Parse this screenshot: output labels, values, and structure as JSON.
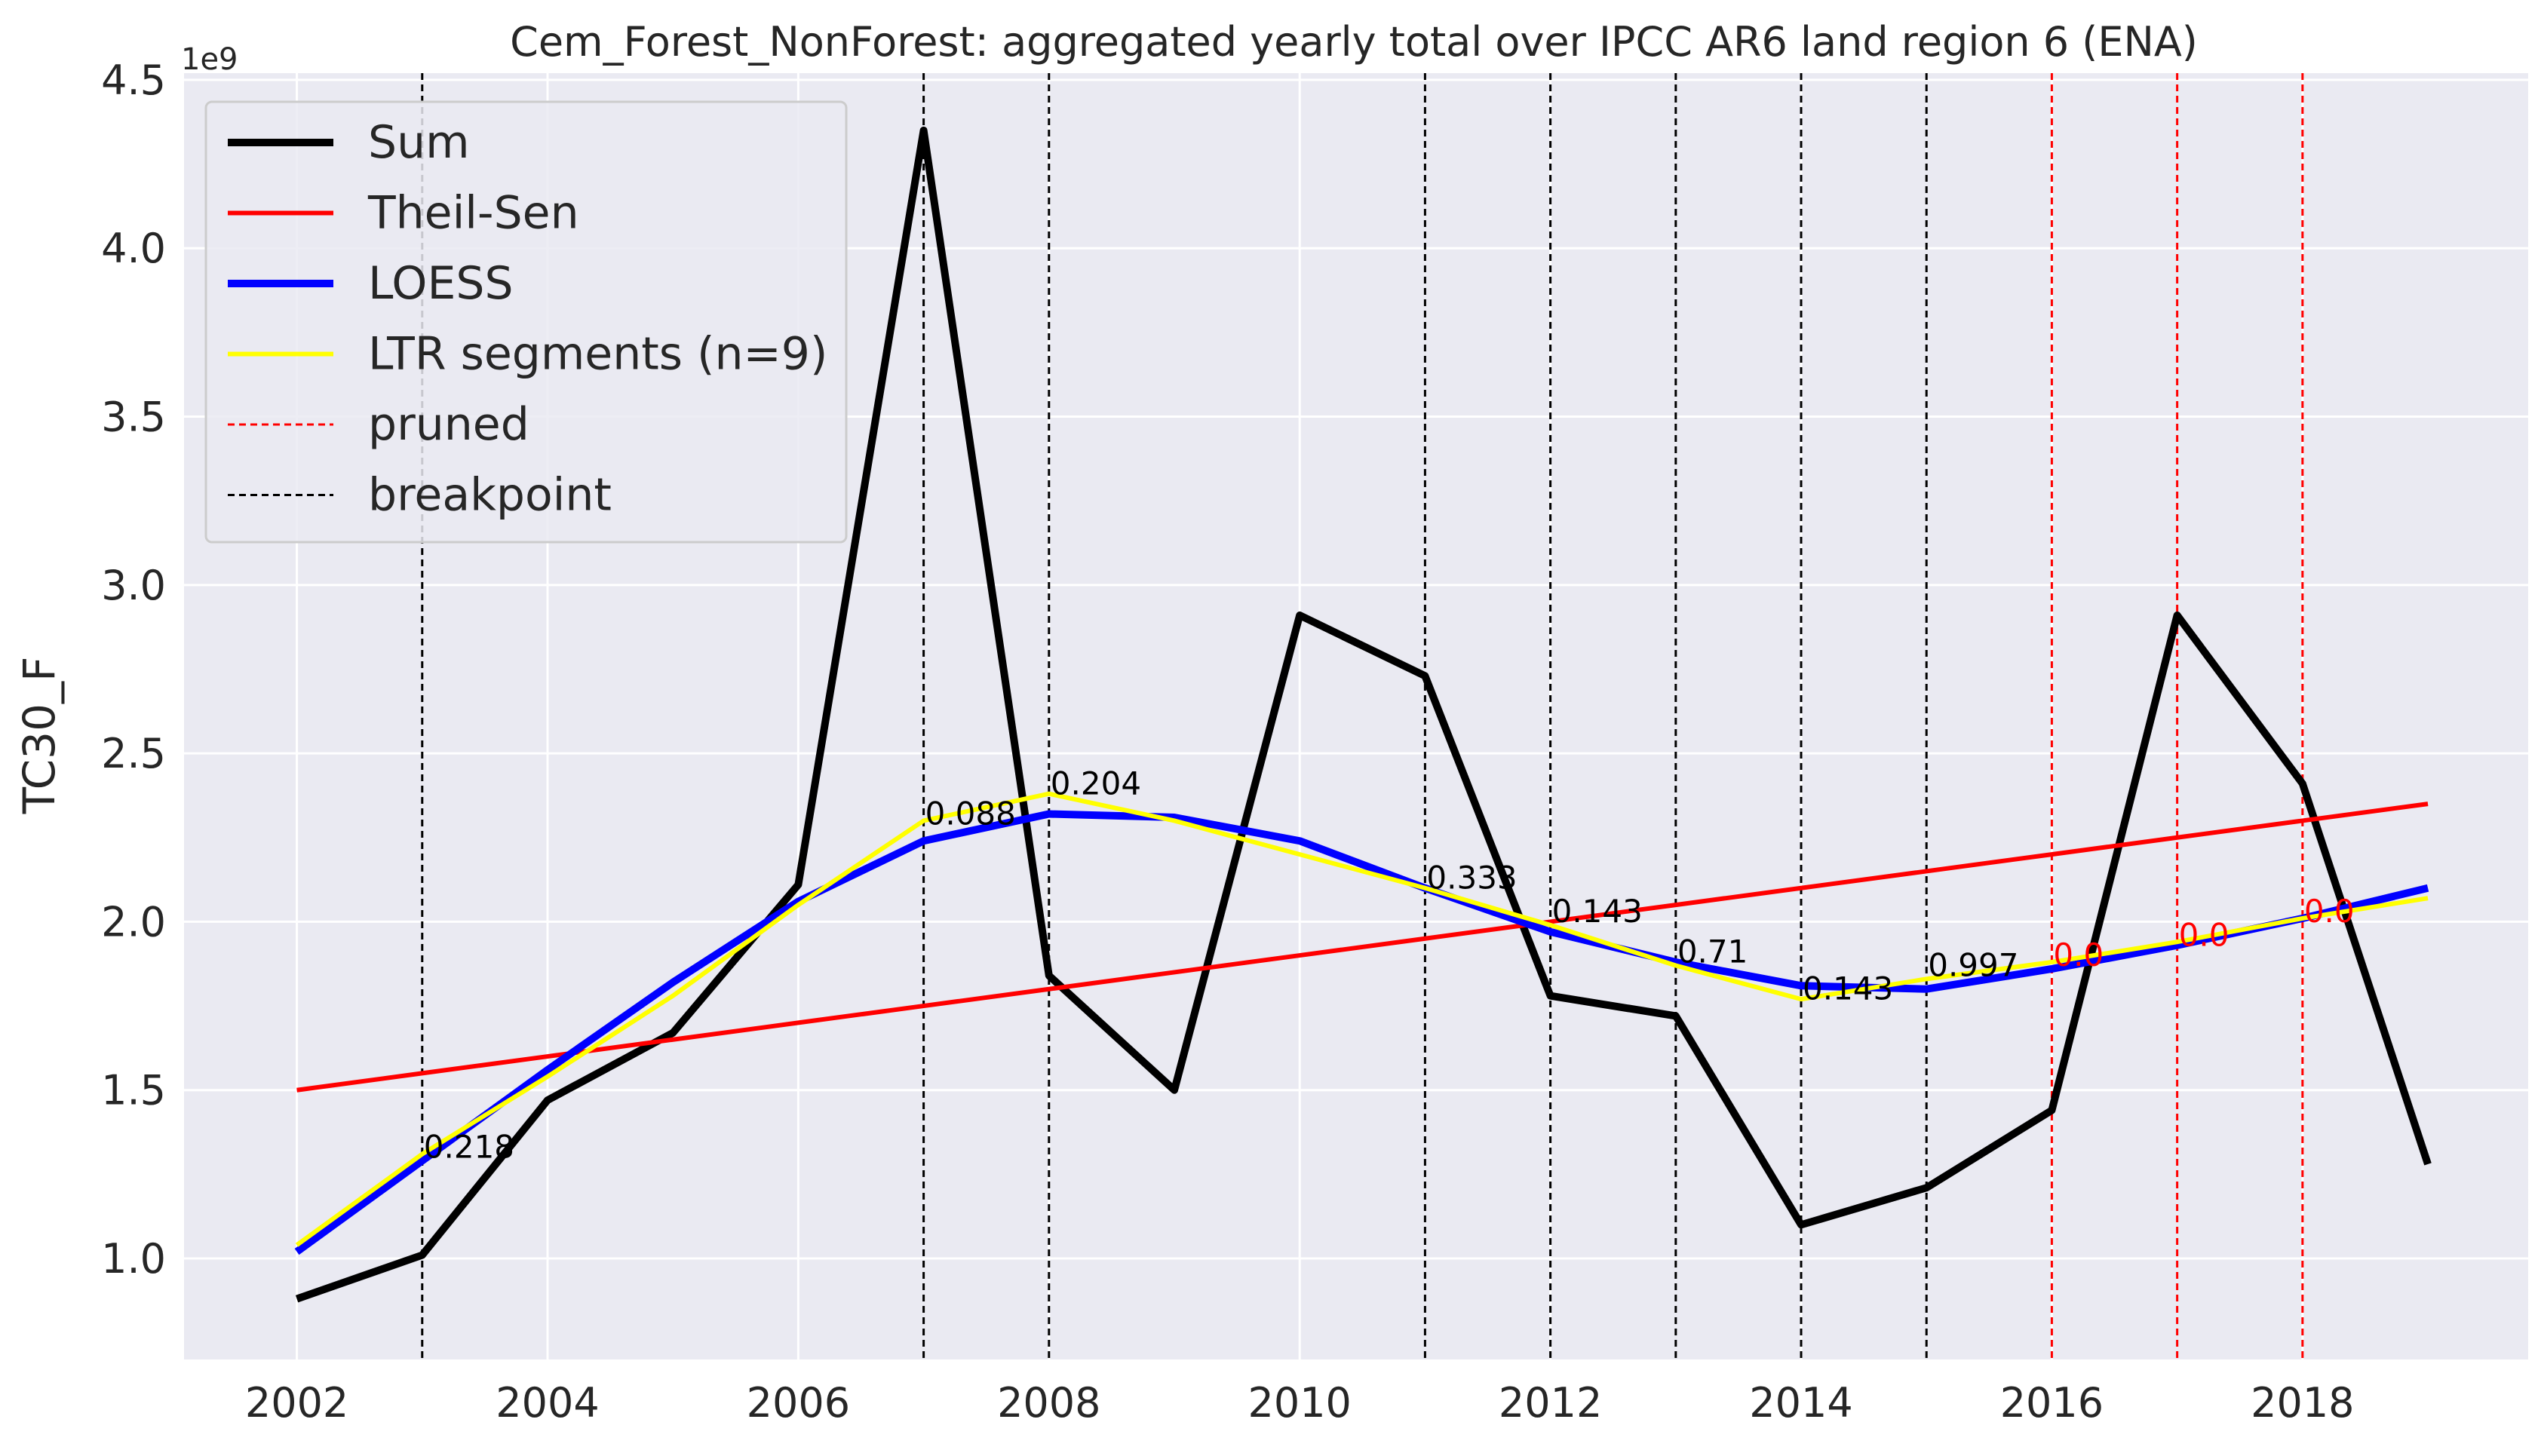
{
  "chart_data": {
    "type": "line",
    "title": "Cem_Forest_NonForest: aggregated yearly total over IPCC AR6 land region 6 (ENA)",
    "xlabel": "",
    "ylabel": "TC30_F",
    "y_offset_text": "1e9",
    "xlim": [
      2001.1,
      2019.8
    ],
    "ylim": [
      700000000.0,
      4520000000.0
    ],
    "x_ticks": [
      2002,
      2004,
      2006,
      2008,
      2010,
      2012,
      2014,
      2016,
      2018
    ],
    "x_tick_labels": [
      "2002",
      "2004",
      "2006",
      "2008",
      "2010",
      "2012",
      "2014",
      "2016",
      "2018"
    ],
    "y_ticks": [
      1000000000.0,
      1500000000.0,
      2000000000.0,
      2500000000.0,
      3000000000.0,
      3500000000.0,
      4000000000.0,
      4500000000.0
    ],
    "y_tick_labels": [
      "1.0",
      "1.5",
      "2.0",
      "2.5",
      "3.0",
      "3.5",
      "4.0",
      "4.5"
    ],
    "grid": true,
    "legend_position": "top-left",
    "x": [
      2002,
      2003,
      2004,
      2005,
      2006,
      2007,
      2008,
      2009,
      2010,
      2011,
      2012,
      2013,
      2014,
      2015,
      2016,
      2017,
      2018,
      2019
    ],
    "series": [
      {
        "name": "Sum",
        "color": "#000000",
        "values": [
          880000000.0,
          1010000000.0,
          1470000000.0,
          1670000000.0,
          2110000000.0,
          4350000000.0,
          1840000000.0,
          1500000000.0,
          2910000000.0,
          2730000000.0,
          1780000000.0,
          1720000000.0,
          1100000000.0,
          1210000000.0,
          1440000000.0,
          2910000000.0,
          2410000000.0,
          1280000000.0
        ]
      },
      {
        "name": "Theil-Sen",
        "color": "#ff0000",
        "values": [
          1500000000.0,
          1550000000.0,
          1600000000.0,
          1650000000.0,
          1700000000.0,
          1750000000.0,
          1800000000.0,
          1850000000.0,
          1900000000.0,
          1950000000.0,
          2000000000.0,
          2050000000.0,
          2100000000.0,
          2150000000.0,
          2200000000.0,
          2250000000.0,
          2300000000.0,
          2350000000.0
        ]
      },
      {
        "name": "LOESS",
        "color": "#0000ff",
        "values": [
          1020000000.0,
          1290000000.0,
          1560000000.0,
          1820000000.0,
          2060000000.0,
          2240000000.0,
          2320000000.0,
          2310000000.0,
          2240000000.0,
          2100000000.0,
          1970000000.0,
          1880000000.0,
          1810000000.0,
          1800000000.0,
          1860000000.0,
          1930000000.0,
          2010000000.0,
          2100000000.0
        ]
      },
      {
        "name": "LTR segments (n=9)",
        "color": "#ffff00",
        "values": [
          1040000000.0,
          1310000000.0,
          1540000000.0,
          1780000000.0,
          2050000000.0,
          2300000000.0,
          2380000000.0,
          2300000000.0,
          2200000000.0,
          2100000000.0,
          1990000000.0,
          1870000000.0,
          1770000000.0,
          1830000000.0,
          1880000000.0,
          1940000000.0,
          2010000000.0,
          2070000000.0
        ]
      }
    ],
    "breakpoints": [
      {
        "x": 2003,
        "label": "0.218",
        "y": 1330000000.0
      },
      {
        "x": 2007,
        "label": "0.088",
        "y": 2320000000.0
      },
      {
        "x": 2008,
        "label": "0.204",
        "y": 2410000000.0
      },
      {
        "x": 2011,
        "label": "0.333",
        "y": 2130000000.0
      },
      {
        "x": 2012,
        "label": "0.143",
        "y": 2030000000.0
      },
      {
        "x": 2013,
        "label": "0.71",
        "y": 1910000000.0
      },
      {
        "x": 2014,
        "label": "0.143",
        "y": 1800000000.0
      },
      {
        "x": 2015,
        "label": "0.997",
        "y": 1870000000.0
      }
    ],
    "pruned": [
      {
        "x": 2016,
        "label": "0.0",
        "y": 1900000000.0
      },
      {
        "x": 2017,
        "label": "0.0",
        "y": 1960000000.0
      },
      {
        "x": 2018,
        "label": "0.0",
        "y": 2030000000.0
      }
    ],
    "legend": [
      {
        "label": "Sum",
        "color": "#000000",
        "style": "solid-thick"
      },
      {
        "label": "Theil-Sen",
        "color": "#ff0000",
        "style": "solid"
      },
      {
        "label": "LOESS",
        "color": "#0000ff",
        "style": "solid-thick"
      },
      {
        "label": "LTR segments (n=9)",
        "color": "#ffff00",
        "style": "solid"
      },
      {
        "label": "pruned",
        "color": "#ff0000",
        "style": "dashed"
      },
      {
        "label": "breakpoint",
        "color": "#000000",
        "style": "dashed"
      }
    ]
  }
}
